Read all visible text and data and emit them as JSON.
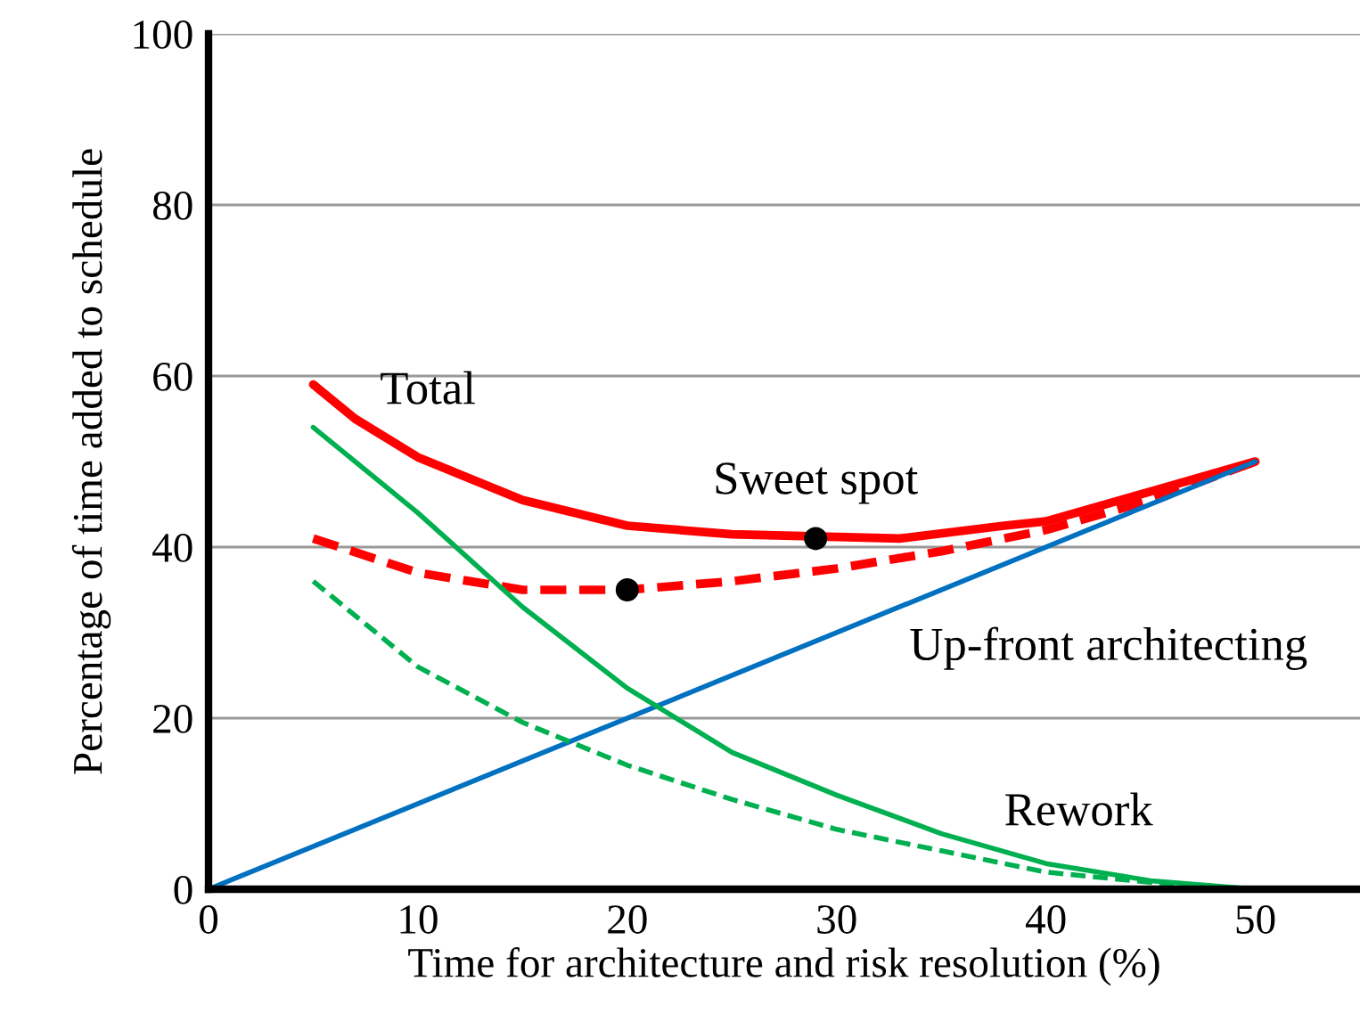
{
  "chart_data": {
    "type": "line",
    "xlabel": "Time for architecture and risk resolution (%)",
    "ylabel": "Percentage of time added to schedule",
    "xlim": [
      0,
      55
    ],
    "xticks": [
      0,
      10,
      20,
      30,
      40,
      50
    ],
    "ylim": [
      0,
      100
    ],
    "yticks": [
      0,
      20,
      40,
      60,
      80,
      100
    ],
    "grid": "y",
    "legend": false,
    "marker": "none",
    "series": [
      {
        "color": "#ff0000",
        "line_style": "solid",
        "x": [
          5,
          7,
          10,
          15,
          20,
          25,
          33,
          38,
          40,
          45,
          50
        ],
        "values": [
          59,
          55,
          50.5,
          45.5,
          42.5,
          41.5,
          41,
          42.5,
          43,
          46.5,
          50
        ]
      },
      {
        "color": "#ff0000",
        "line_style": "dashed",
        "x": [
          5,
          10,
          15,
          20,
          25,
          30,
          35,
          40,
          45,
          50
        ],
        "values": [
          41,
          37,
          35,
          35,
          36,
          37.5,
          39.5,
          42,
          45.5,
          50
        ]
      },
      {
        "color": "#0070c0",
        "line_style": "solid",
        "x": [
          0,
          50
        ],
        "values": [
          0,
          50
        ]
      },
      {
        "color": "#00b050",
        "line_style": "solid",
        "x": [
          5,
          10,
          15,
          20,
          25,
          30,
          35,
          40,
          45,
          50
        ],
        "values": [
          54,
          44,
          33,
          23.5,
          16,
          11,
          6.5,
          3,
          1,
          0
        ]
      },
      {
        "color": "#00b050",
        "line_style": "dashed",
        "x": [
          5,
          10,
          15,
          20,
          25,
          30,
          35,
          40,
          45,
          50
        ],
        "values": [
          36,
          26,
          19.5,
          14.5,
          10.5,
          7,
          4.5,
          2,
          0.8,
          0
        ]
      },
      {
        "type": "scatter",
        "color": "#000000",
        "marker": "circle",
        "x": [
          20,
          29
        ],
        "values": [
          35,
          41
        ]
      }
    ],
    "annotations": [
      {
        "text": "Total",
        "x": 7,
        "y": 55
      },
      {
        "text": "Sweet spot",
        "x": 29,
        "y": 41
      },
      {
        "text": "Up-front architecting",
        "x": 33,
        "y": 33
      },
      {
        "text": "Rework",
        "x": 38,
        "y": 4
      }
    ]
  }
}
